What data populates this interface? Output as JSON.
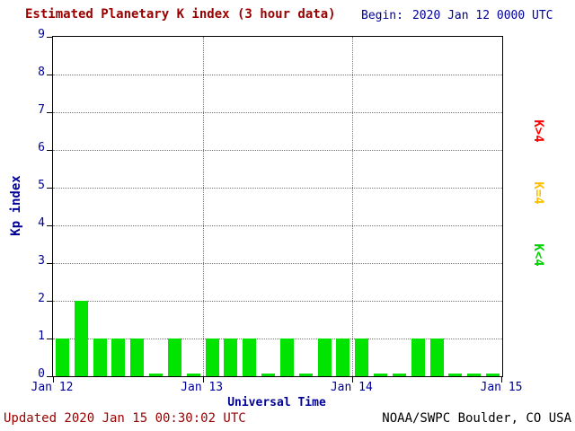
{
  "header": {
    "title": "Estimated Planetary K index (3 hour data)",
    "begin_label": "Begin:",
    "begin_value": "2020 Jan 12 0000 UTC"
  },
  "axes": {
    "ylabel": "Kp index",
    "xlabel": "Universal Time"
  },
  "legend": {
    "items": [
      {
        "label": "K>4",
        "color": "#ff0000"
      },
      {
        "label": "K=4",
        "color": "#ffc000"
      },
      {
        "label": "K<4",
        "color": "#00d000"
      }
    ]
  },
  "footer": {
    "updated": "Updated 2020 Jan 15 00:30:02 UTC",
    "source": "NOAA/SWPC Boulder, CO USA"
  },
  "colors": {
    "bar": "#00e400",
    "title_text": "#990000",
    "axis_text": "#000099",
    "frame": "#000000"
  },
  "chart_data": {
    "type": "bar",
    "title": "Estimated Planetary K index (3 hour data)",
    "xlabel": "Universal Time",
    "ylabel": "Kp index",
    "ylim": [
      0,
      9
    ],
    "yticks": [
      0,
      1,
      2,
      3,
      4,
      5,
      6,
      7,
      8,
      9
    ],
    "x_day_labels": [
      "Jan 12",
      "Jan 13",
      "Jan 14",
      "Jan 15"
    ],
    "interval_hours": 3,
    "begin": "2020 Jan 12 0000 UTC",
    "grid": true,
    "legend_position": "right",
    "bar_color_rule": "green if K<4, yellow if K=4, red if K>4",
    "values": [
      1,
      2,
      1,
      1,
      1,
      0,
      1,
      0,
      1,
      1,
      1,
      0,
      1,
      0,
      1,
      1,
      1,
      0,
      0,
      1,
      1,
      0,
      0,
      0
    ]
  }
}
